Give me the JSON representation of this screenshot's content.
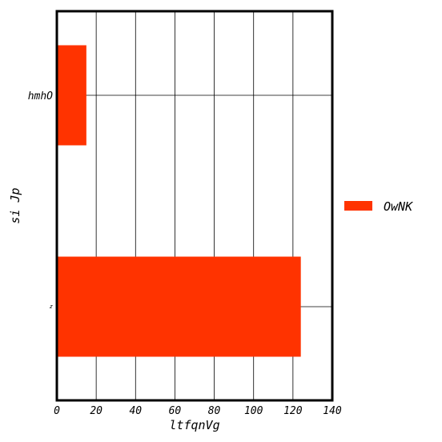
{
  "chart_data": {
    "type": "bar",
    "orientation": "horizontal",
    "categories": [
      "hmhO",
      "z"
    ],
    "values": [
      15,
      124
    ],
    "xlabel": "ltfqnVg",
    "ylabel": "si Jp",
    "xlim": [
      0,
      140
    ],
    "xticks": [
      "0",
      "20",
      "40",
      "60",
      "80",
      "100",
      "120",
      "140"
    ],
    "grid": true,
    "legend_position": "right",
    "series": [
      {
        "name": "OwNK",
        "values": [
          15,
          124
        ],
        "color": "#ff3300"
      }
    ]
  }
}
